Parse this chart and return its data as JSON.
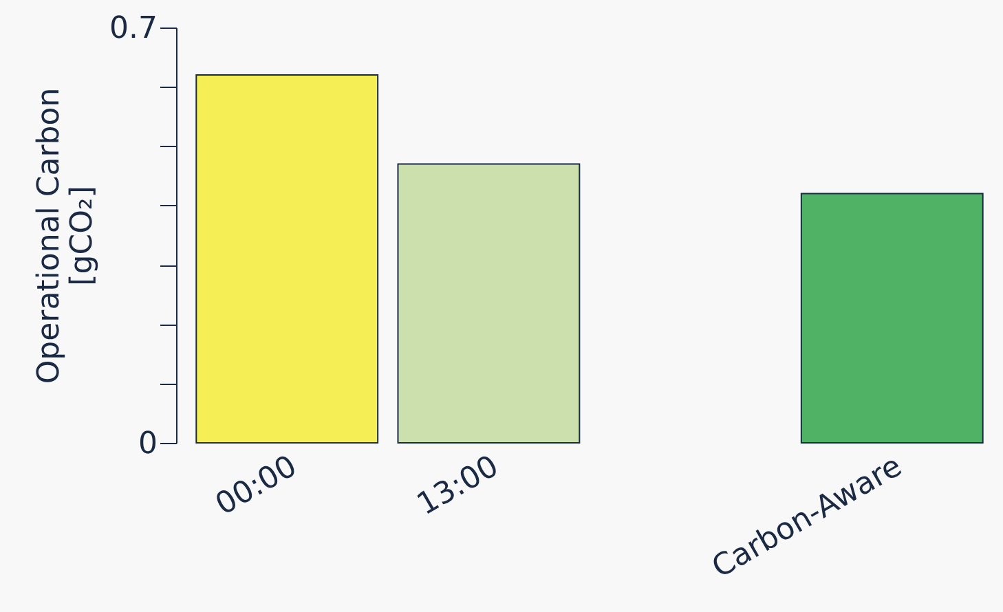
{
  "chart_data": {
    "type": "bar",
    "ylabel": "Operational Carbon\n[gCO₂]",
    "categories": [
      "00:00",
      "13:00",
      null,
      "Carbon-Aware"
    ],
    "values": [
      0.62,
      0.47,
      null,
      0.42
    ],
    "colors": [
      "#f5ef55",
      "#cbe0ad",
      "#cbe0ad",
      "#4fb264"
    ],
    "ylim": [
      0,
      0.7
    ],
    "yticks": [
      0,
      {
        "value": 0.1,
        "label": null
      },
      {
        "value": 0.2,
        "label": null
      },
      {
        "value": 0.3,
        "label": null
      },
      {
        "value": 0.4,
        "label": null
      },
      {
        "value": 0.5,
        "label": null
      },
      {
        "value": 0.6,
        "label": null
      },
      0.7
    ],
    "grid": false
  }
}
